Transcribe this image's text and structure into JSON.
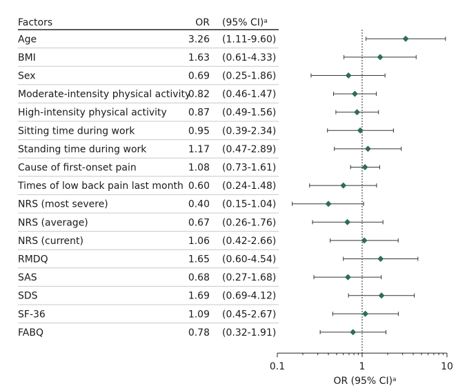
{
  "header": {
    "factor_label": "Factors",
    "or_label": "OR",
    "ci_label": "(95% CI)",
    "ci_superscript": "a"
  },
  "chart_data": {
    "type": "forest",
    "x_scale": "log",
    "xlim": [
      0.1,
      10
    ],
    "x_ticks": [
      "0.1",
      "1",
      "10"
    ],
    "reference_line": 1,
    "xlabel": "OR (95% CI)",
    "xlabel_superscript": "a",
    "marker_color": "#2f6e50",
    "line_color": "#333333",
    "rows": [
      {
        "factor": "Age",
        "or": 3.26,
        "lo": 1.11,
        "hi": 9.6,
        "or_text": "3.26",
        "ci_text": "(1.11-9.60)"
      },
      {
        "factor": "BMI",
        "or": 1.63,
        "lo": 0.61,
        "hi": 4.33,
        "or_text": "1.63",
        "ci_text": "(0.61-4.33)"
      },
      {
        "factor": "Sex",
        "or": 0.69,
        "lo": 0.25,
        "hi": 1.86,
        "or_text": "0.69",
        "ci_text": "(0.25-1.86)"
      },
      {
        "factor": "Moderate-intensity physical activity",
        "or": 0.82,
        "lo": 0.46,
        "hi": 1.47,
        "or_text": "0.82",
        "ci_text": "(0.46-1.47)"
      },
      {
        "factor": "High-intensity physical activity",
        "or": 0.87,
        "lo": 0.49,
        "hi": 1.56,
        "or_text": "0.87",
        "ci_text": "(0.49-1.56)"
      },
      {
        "factor": "Sitting time during work",
        "or": 0.95,
        "lo": 0.39,
        "hi": 2.34,
        "or_text": "0.95",
        "ci_text": "(0.39-2.34)"
      },
      {
        "factor": "Standing time during work",
        "or": 1.17,
        "lo": 0.47,
        "hi": 2.89,
        "or_text": "1.17",
        "ci_text": "(0.47-2.89)"
      },
      {
        "factor": "Cause of first-onset pain",
        "or": 1.08,
        "lo": 0.73,
        "hi": 1.61,
        "or_text": "1.08",
        "ci_text": "(0.73-1.61)"
      },
      {
        "factor": "Times of low back pain last month",
        "or": 0.6,
        "lo": 0.24,
        "hi": 1.48,
        "or_text": "0.60",
        "ci_text": "(0.24-1.48)"
      },
      {
        "factor": "NRS (most severe)",
        "or": 0.4,
        "lo": 0.15,
        "hi": 1.04,
        "or_text": "0.40",
        "ci_text": "(0.15-1.04)"
      },
      {
        "factor": "NRS (average)",
        "or": 0.67,
        "lo": 0.26,
        "hi": 1.76,
        "or_text": "0.67",
        "ci_text": "(0.26-1.76)"
      },
      {
        "factor": "NRS (current)",
        "or": 1.06,
        "lo": 0.42,
        "hi": 2.66,
        "or_text": "1.06",
        "ci_text": "(0.42-2.66)"
      },
      {
        "factor": "RMDQ",
        "or": 1.65,
        "lo": 0.6,
        "hi": 4.54,
        "or_text": "1.65",
        "ci_text": "(0.60-4.54)"
      },
      {
        "factor": "SAS",
        "or": 0.68,
        "lo": 0.27,
        "hi": 1.68,
        "or_text": "0.68",
        "ci_text": "(0.27-1.68)"
      },
      {
        "factor": "SDS",
        "or": 1.69,
        "lo": 0.69,
        "hi": 4.12,
        "or_text": "1.69",
        "ci_text": "(0.69-4.12)"
      },
      {
        "factor": "SF-36",
        "or": 1.09,
        "lo": 0.45,
        "hi": 2.67,
        "or_text": "1.09",
        "ci_text": "(0.45-2.67)"
      },
      {
        "factor": "FABQ",
        "or": 0.78,
        "lo": 0.32,
        "hi": 1.91,
        "or_text": "0.78",
        "ci_text": "(0.32-1.91)"
      }
    ]
  }
}
